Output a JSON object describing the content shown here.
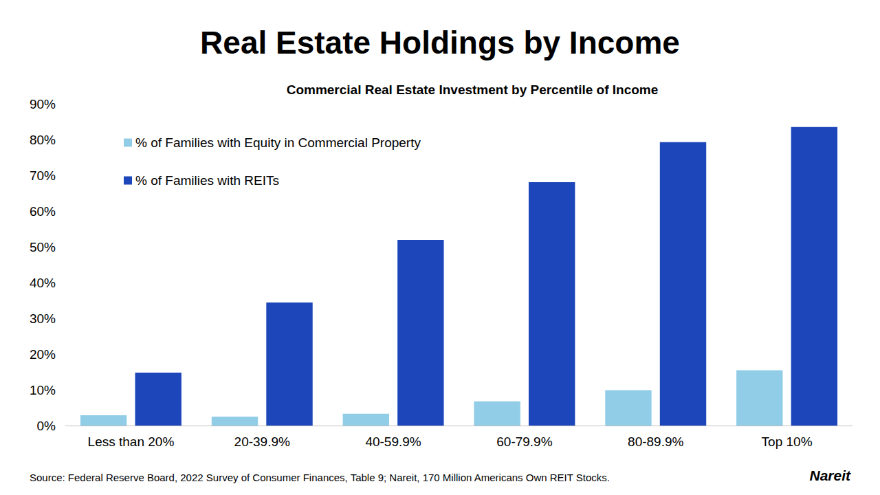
{
  "chart_data": {
    "type": "bar",
    "title": "Real Estate Holdings by Income",
    "subtitle": "Commercial Real Estate Investment by Percentile of Income",
    "categories": [
      "Less than 20%",
      "20-39.9%",
      "40-59.9%",
      "60-79.9%",
      "80-89.9%",
      "Top 10%"
    ],
    "series": [
      {
        "name": "% of Families with Equity in Commercial Property",
        "color": "#92cde8",
        "values": [
          2.9,
          2.5,
          3.3,
          6.8,
          9.9,
          15.5
        ]
      },
      {
        "name": "% of Families with REITs",
        "color": "#1c46ba",
        "values": [
          14.8,
          34.4,
          51.9,
          68.1,
          79.3,
          83.5
        ]
      }
    ],
    "ylim": [
      0,
      90
    ],
    "yticks": [
      {
        "value": 0,
        "label": "0%"
      },
      {
        "value": 10,
        "label": "10%"
      },
      {
        "value": 20,
        "label": "20%"
      },
      {
        "value": 30,
        "label": "30%"
      },
      {
        "value": 40,
        "label": "40%"
      },
      {
        "value": 50,
        "label": "50%"
      },
      {
        "value": 60,
        "label": "60%"
      },
      {
        "value": 70,
        "label": "70%"
      },
      {
        "value": 80,
        "label": "80%"
      },
      {
        "value": 90,
        "label": "90%"
      }
    ],
    "grid": false,
    "legend": "upper left",
    "source": "Source: Federal Reserve Board, 2022 Survey of Consumer Finances, Table 9; Nareit, 170 Million Americans Own REIT Stocks.",
    "logo": "Nareit"
  }
}
